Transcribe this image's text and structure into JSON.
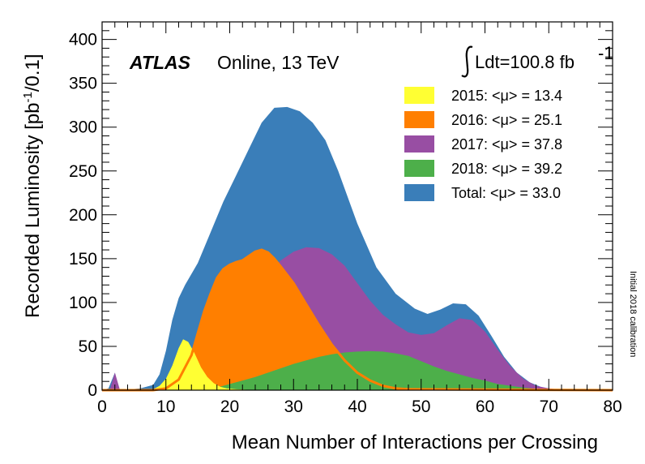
{
  "chart_data": {
    "type": "area",
    "experiment_label": "ATLAS",
    "energy_label": "Online, 13 TeV",
    "lumi_label": "Ldt=100.8 fb",
    "lumi_exponent": "-1",
    "side_note": "Initial 2018 calibration",
    "xlabel": "Mean Number of Interactions per Crossing",
    "ylabel": "Recorded Luminosity [pb",
    "ylabel_exponent": "-1",
    "ylabel_suffix": "/0.1]",
    "xlim": [
      0,
      80
    ],
    "ylim": [
      0,
      420
    ],
    "x_ticks": [
      "0",
      "10",
      "20",
      "30",
      "40",
      "50",
      "60",
      "70",
      "80"
    ],
    "y_ticks": [
      "0",
      "50",
      "100",
      "150",
      "200",
      "250",
      "300",
      "350",
      "400"
    ],
    "legend_position": "top-right",
    "series": [
      {
        "name": "Total: <μ> = 33.0",
        "color": "#3a7eb9",
        "points": [
          [
            0,
            0
          ],
          [
            1,
            2
          ],
          [
            2,
            20
          ],
          [
            2.6,
            2
          ],
          [
            3,
            0
          ],
          [
            6,
            2
          ],
          [
            8,
            6
          ],
          [
            9,
            18
          ],
          [
            10,
            45
          ],
          [
            11,
            80
          ],
          [
            12,
            105
          ],
          [
            13,
            120
          ],
          [
            15,
            145
          ],
          [
            17,
            180
          ],
          [
            19,
            215
          ],
          [
            21,
            245
          ],
          [
            23,
            275
          ],
          [
            25,
            305
          ],
          [
            27,
            322
          ],
          [
            29,
            323
          ],
          [
            31,
            318
          ],
          [
            33,
            305
          ],
          [
            35,
            285
          ],
          [
            37,
            250
          ],
          [
            40,
            190
          ],
          [
            43,
            140
          ],
          [
            46,
            110
          ],
          [
            49,
            93
          ],
          [
            51,
            87
          ],
          [
            53,
            92
          ],
          [
            55,
            99
          ],
          [
            57,
            98
          ],
          [
            59,
            85
          ],
          [
            61,
            62
          ],
          [
            63,
            38
          ],
          [
            65,
            20
          ],
          [
            67,
            9
          ],
          [
            69,
            3
          ],
          [
            71,
            1
          ],
          [
            73,
            0.5
          ],
          [
            80,
            0
          ]
        ]
      },
      {
        "name": "2017: <μ> = 37.8",
        "color": "#984ea3",
        "points": [
          [
            0,
            0
          ],
          [
            1.2,
            0
          ],
          [
            2,
            20
          ],
          [
            2.8,
            0
          ],
          [
            15,
            0
          ],
          [
            18,
            15
          ],
          [
            20,
            40
          ],
          [
            22,
            75
          ],
          [
            24,
            110
          ],
          [
            26,
            133
          ],
          [
            28,
            148
          ],
          [
            30,
            158
          ],
          [
            32,
            163
          ],
          [
            34,
            162
          ],
          [
            36,
            155
          ],
          [
            38,
            142
          ],
          [
            40,
            122
          ],
          [
            42,
            102
          ],
          [
            44,
            86
          ],
          [
            46,
            75
          ],
          [
            48,
            66
          ],
          [
            50,
            63
          ],
          [
            52,
            65
          ],
          [
            54,
            74
          ],
          [
            56,
            82
          ],
          [
            58,
            80
          ],
          [
            60,
            67
          ],
          [
            62,
            46
          ],
          [
            64,
            27
          ],
          [
            66,
            13
          ],
          [
            68,
            5
          ],
          [
            70,
            2
          ],
          [
            72,
            0.5
          ],
          [
            80,
            0
          ]
        ]
      },
      {
        "name": "2016: <μ> = 25.1",
        "color": "#ff7f00",
        "points": [
          [
            0,
            0
          ],
          [
            8,
            0
          ],
          [
            10,
            2
          ],
          [
            12,
            12
          ],
          [
            14,
            40
          ],
          [
            15,
            65
          ],
          [
            16,
            90
          ],
          [
            17,
            110
          ],
          [
            18,
            128
          ],
          [
            19,
            138
          ],
          [
            20,
            143
          ],
          [
            21,
            146
          ],
          [
            22,
            148
          ],
          [
            23,
            153
          ],
          [
            24,
            158
          ],
          [
            25,
            160
          ],
          [
            26,
            157
          ],
          [
            27,
            150
          ],
          [
            28,
            141
          ],
          [
            30,
            122
          ],
          [
            32,
            98
          ],
          [
            34,
            74
          ],
          [
            36,
            52
          ],
          [
            38,
            34
          ],
          [
            40,
            20
          ],
          [
            42,
            11
          ],
          [
            44,
            5
          ],
          [
            46,
            2
          ],
          [
            48,
            1
          ],
          [
            80,
            0
          ]
        ]
      },
      {
        "name": "2018: <μ> = 39.2",
        "color": "#4daf4a",
        "points": [
          [
            0,
            0
          ],
          [
            14,
            0
          ],
          [
            16,
            1
          ],
          [
            18,
            3
          ],
          [
            20,
            7
          ],
          [
            22,
            11
          ],
          [
            24,
            15
          ],
          [
            26,
            20
          ],
          [
            28,
            25
          ],
          [
            30,
            30
          ],
          [
            32,
            34
          ],
          [
            34,
            38
          ],
          [
            36,
            41
          ],
          [
            38,
            43
          ],
          [
            40,
            44
          ],
          [
            42,
            44.5
          ],
          [
            44,
            44
          ],
          [
            46,
            42
          ],
          [
            48,
            39
          ],
          [
            50,
            33
          ],
          [
            52,
            27
          ],
          [
            54,
            22
          ],
          [
            56,
            18
          ],
          [
            58,
            14
          ],
          [
            60,
            11
          ],
          [
            62,
            7
          ],
          [
            64,
            5
          ],
          [
            66,
            3
          ],
          [
            68,
            1.5
          ],
          [
            70,
            0.5
          ],
          [
            80,
            0
          ]
        ]
      },
      {
        "name": "2015: <μ> = 13.4",
        "color": "#ffff33",
        "points": [
          [
            0,
            0
          ],
          [
            7,
            0
          ],
          [
            8,
            1
          ],
          [
            9,
            5
          ],
          [
            10,
            13
          ],
          [
            11,
            28
          ],
          [
            12,
            48
          ],
          [
            12.7,
            58
          ],
          [
            13.5,
            55
          ],
          [
            14.5,
            42
          ],
          [
            15.5,
            26
          ],
          [
            16.5,
            15
          ],
          [
            17.5,
            8
          ],
          [
            18.5,
            4
          ],
          [
            19.5,
            2
          ],
          [
            21,
            1
          ],
          [
            24,
            0
          ],
          [
            80,
            0
          ]
        ]
      }
    ]
  }
}
